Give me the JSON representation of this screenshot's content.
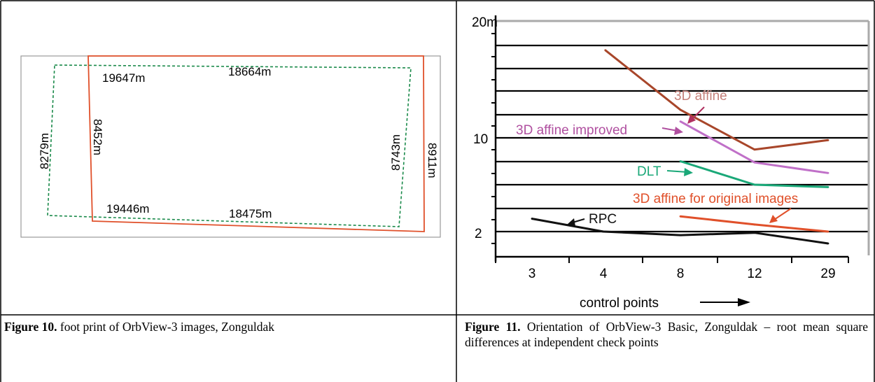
{
  "figure10": {
    "labels": {
      "top_green": "19647m",
      "top_red": "18664m",
      "bottom_green": "19446m",
      "bottom_red": "18475m",
      "left_green": "8279m",
      "left_red": "8452m",
      "right_green": "8743m",
      "right_red": "8911m"
    },
    "colors": {
      "green": "#1a8a4a",
      "red": "#e0502a",
      "frame": "#888888"
    },
    "caption_label": "Figure 10.",
    "caption_text": " foot print of OrbView-3 images, Zonguldak"
  },
  "figure11": {
    "caption_label": "Figure 11.",
    "caption_text": " Orientation of OrbView-3 Basic, Zonguldak – root mean square differences at independent check points"
  },
  "chart_data": {
    "type": "line",
    "categories": [
      "3",
      "4",
      "8",
      "12",
      "29"
    ],
    "xlabel": "control points",
    "y_ticks": [
      "20m",
      "10",
      "2"
    ],
    "ylim": [
      0,
      20
    ],
    "grid": true,
    "series": [
      {
        "name": "3D affine",
        "color": "#a8462a",
        "x": [
          4.1,
          8,
          12,
          29
        ],
        "values": [
          17.5,
          12.4,
          9.0,
          9.8
        ]
      },
      {
        "name": "3D affine improved",
        "color": "#c070c8",
        "x": [
          8,
          12,
          29
        ],
        "values": [
          11.4,
          7.9,
          7.0
        ]
      },
      {
        "name": "DLT",
        "color": "#1aa878",
        "x": [
          8,
          12,
          29
        ],
        "values": [
          8.0,
          6.0,
          5.8
        ]
      },
      {
        "name": "3D affine for original images",
        "color": "#e0502a",
        "x": [
          8,
          12,
          29
        ],
        "values": [
          3.3,
          2.6,
          2.0
        ]
      },
      {
        "name": "RPC",
        "color": "#111111",
        "x": [
          3,
          4,
          8,
          12,
          29
        ],
        "values": [
          3.1,
          2.0,
          1.7,
          1.9,
          1.0
        ]
      }
    ],
    "annotation_labels": [
      "3D affine",
      "3D affine improved",
      "DLT",
      "3D affine for original images",
      "RPC"
    ]
  }
}
